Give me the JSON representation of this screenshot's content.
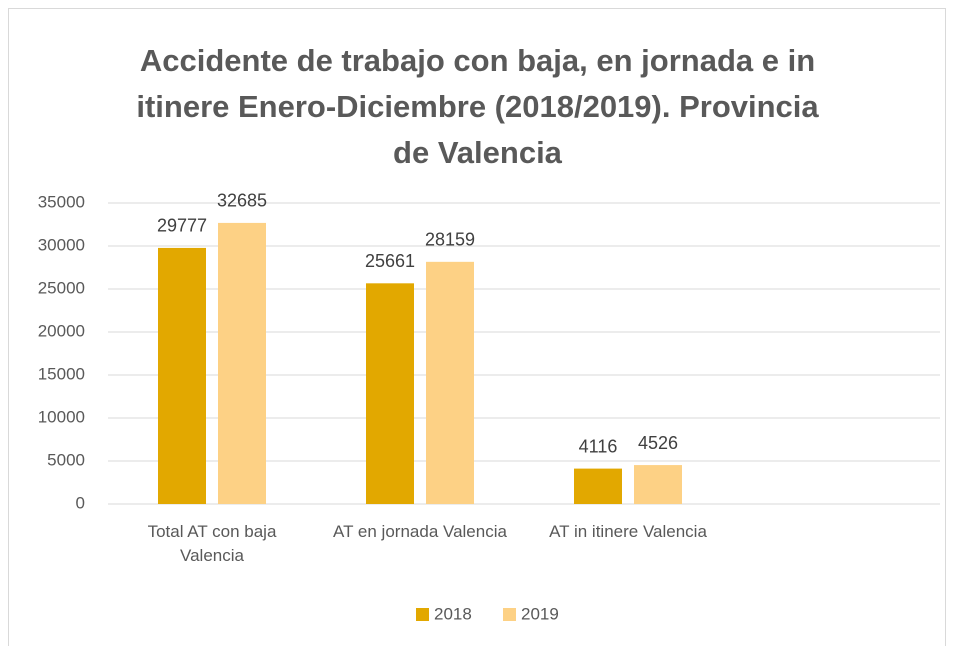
{
  "chart_data": {
    "type": "bar",
    "title": "Accidente de trabajo con baja, en jornada e in itinere Enero-Diciembre (2018/2019). Provincia de Valencia",
    "categories": [
      "Total AT con baja Valencia",
      "AT en jornada Valencia",
      "AT in itinere Valencia",
      null
    ],
    "series": [
      {
        "name": "2018",
        "color": "#e2a800",
        "values": [
          29777,
          25661,
          4116,
          null
        ]
      },
      {
        "name": "2019",
        "color": "#fdd185",
        "values": [
          32685,
          28159,
          4526,
          null
        ]
      }
    ],
    "ylim": [
      0,
      35000
    ],
    "yticks": [
      0,
      5000,
      10000,
      15000,
      20000,
      25000,
      30000,
      35000
    ],
    "grid": true,
    "legend": "bottom"
  }
}
